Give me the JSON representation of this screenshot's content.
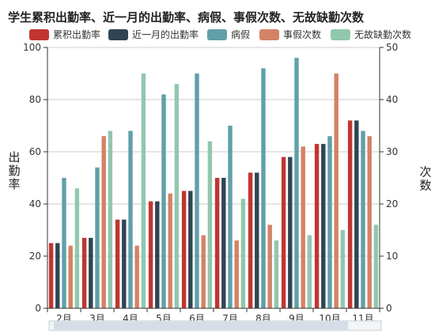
{
  "chart_data": {
    "type": "bar",
    "title": "学生累积出勤率、近一月的出勤率、病假、事假次数、无故缺勤次数",
    "categories": [
      "2月",
      "3月",
      "4月",
      "5月",
      "6月",
      "7月",
      "8月",
      "9月",
      "10月",
      "11月"
    ],
    "y_left": {
      "label": "出勤率",
      "ylim": [
        0,
        100
      ],
      "ticks": [
        0,
        20,
        40,
        60,
        80,
        100
      ]
    },
    "y_right": {
      "label": "次数",
      "ylim": [
        0,
        50
      ],
      "ticks": [
        0,
        10,
        20,
        30,
        40,
        50
      ]
    },
    "grid": true,
    "legend_position": "top",
    "series": [
      {
        "name": "累积出勤率",
        "color": "#c23531",
        "axis": "left",
        "values": [
          25,
          27,
          34,
          41,
          45,
          50,
          52,
          58,
          63,
          72
        ]
      },
      {
        "name": "近一月的出勤率",
        "color": "#2f4554",
        "axis": "left",
        "values": [
          25,
          27,
          34,
          41,
          45,
          50,
          52,
          58,
          63,
          72
        ]
      },
      {
        "name": "病假",
        "color": "#61a0a8",
        "axis": "right",
        "values": [
          25,
          27,
          34,
          41,
          45,
          35,
          46,
          48,
          33,
          34
        ]
      },
      {
        "name": "事假次数",
        "color": "#d48265",
        "axis": "right",
        "values": [
          12,
          33,
          12,
          22,
          14,
          13,
          16,
          31,
          45,
          33
        ]
      },
      {
        "name": "无故缺勤次数",
        "color": "#91c7ae",
        "axis": "right",
        "values": [
          23,
          34,
          45,
          43,
          32,
          21,
          13,
          14,
          15,
          16
        ]
      }
    ]
  }
}
